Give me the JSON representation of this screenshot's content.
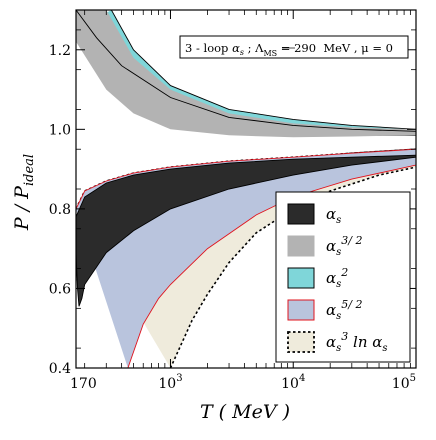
{
  "chart_data": {
    "type": "area",
    "annotation": {
      "prefix": "3 - loop ",
      "alpha": "α",
      "alpha_sub": "s",
      "mid": " ; Λ",
      "lambda_sub": "MS",
      "suffix": " = 290  MeV , μ = 0"
    },
    "xlabel": "T ( MeV )",
    "ylabel": {
      "main": "P / P",
      "sub": "ideal"
    },
    "x_scale": "log",
    "xlim": [
      170,
      100000
    ],
    "ylim": [
      0.4,
      1.3
    ],
    "x_ticks": [
      {
        "value": 170,
        "label": "170"
      },
      {
        "value": 1000,
        "base": "10",
        "exp": "3"
      },
      {
        "value": 10000,
        "base": "10",
        "exp": "4"
      },
      {
        "value": 100000,
        "base": "10",
        "exp": "5"
      }
    ],
    "y_ticks": [
      {
        "value": 0.4,
        "label": "0.4"
      },
      {
        "value": 0.6,
        "label": "0.6"
      },
      {
        "value": 0.8,
        "label": "0.8"
      },
      {
        "value": 1.0,
        "label": "1.0"
      },
      {
        "value": 1.2,
        "label": "1.2"
      }
    ],
    "grid": false,
    "legend_position": "lower-right",
    "series": [
      {
        "name": "α_s^3 ln α_s",
        "legend": {
          "base": "α",
          "sub": "s",
          "sup": "3",
          "tail": " ln α",
          "tail_sub": "s"
        },
        "fill": "#efebdc",
        "stroke": "#000000",
        "dashed": true,
        "upper": [
          [
            170,
            0.8
          ],
          [
            200,
            0.845
          ],
          [
            300,
            0.87
          ],
          [
            500,
            0.89
          ],
          [
            1000,
            0.905
          ],
          [
            3000,
            0.92
          ],
          [
            10000,
            0.93
          ],
          [
            30000,
            0.94
          ],
          [
            100000,
            0.95
          ]
        ],
        "lower": [
          [
            1000,
            0.4
          ],
          [
            1500,
            0.52
          ],
          [
            2000,
            0.585
          ],
          [
            3000,
            0.665
          ],
          [
            5000,
            0.74
          ],
          [
            10000,
            0.8
          ],
          [
            20000,
            0.845
          ],
          [
            50000,
            0.885
          ],
          [
            100000,
            0.905
          ]
        ],
        "inner_line": [
          [
            175,
            0.62
          ],
          [
            200,
            0.7
          ],
          [
            300,
            0.775
          ],
          [
            500,
            0.83
          ],
          [
            1000,
            0.87
          ],
          [
            3000,
            0.905
          ],
          [
            10000,
            0.925
          ],
          [
            30000,
            0.94
          ],
          [
            100000,
            0.95
          ]
        ]
      },
      {
        "name": "α_s^5/2",
        "legend": {
          "base": "α",
          "sub": "s",
          "sup": "5/ 2"
        },
        "fill": "#b9c4dd",
        "stroke": "#e0141e",
        "upper": [
          [
            170,
            0.8
          ],
          [
            200,
            0.845
          ],
          [
            300,
            0.87
          ],
          [
            500,
            0.89
          ],
          [
            1000,
            0.905
          ],
          [
            3000,
            0.92
          ],
          [
            10000,
            0.93
          ],
          [
            30000,
            0.94
          ],
          [
            100000,
            0.95
          ]
        ],
        "lower": [
          [
            450,
            0.4
          ],
          [
            600,
            0.51
          ],
          [
            800,
            0.575
          ],
          [
            1000,
            0.61
          ],
          [
            2000,
            0.7
          ],
          [
            5000,
            0.785
          ],
          [
            10000,
            0.83
          ],
          [
            30000,
            0.875
          ],
          [
            100000,
            0.91
          ]
        ]
      },
      {
        "name": "α_s^2",
        "legend": {
          "base": "α",
          "sub": "s",
          "sup": "2"
        },
        "fill": "#7fd6d9",
        "stroke": "#000000",
        "upper": [
          [
            330,
            1.3
          ],
          [
            500,
            1.2
          ],
          [
            1000,
            1.11
          ],
          [
            3000,
            1.05
          ],
          [
            10000,
            1.025
          ],
          [
            30000,
            1.01
          ],
          [
            100000,
            1.0
          ]
        ],
        "lower": [
          [
            170,
            1.25
          ],
          [
            300,
            1.13
          ],
          [
            500,
            1.07
          ],
          [
            1000,
            1.02
          ],
          [
            3000,
            1.0
          ],
          [
            10000,
            0.99
          ],
          [
            30000,
            0.985
          ],
          [
            100000,
            0.985
          ]
        ]
      },
      {
        "name": "α_s^3/2",
        "legend": {
          "base": "α",
          "sub": "s",
          "sup": "3/ 2"
        },
        "fill": "#b3b3b3",
        "stroke": "none",
        "upper": [
          [
            170,
            1.3
          ],
          [
            300,
            1.3
          ],
          [
            500,
            1.18
          ],
          [
            1000,
            1.1
          ],
          [
            3000,
            1.04
          ],
          [
            10000,
            1.015
          ],
          [
            30000,
            1.005
          ],
          [
            100000,
            1.0
          ]
        ],
        "lower": [
          [
            170,
            1.22
          ],
          [
            300,
            1.1
          ],
          [
            500,
            1.04
          ],
          [
            1000,
            1.0
          ],
          [
            3000,
            0.985
          ],
          [
            10000,
            0.98
          ],
          [
            30000,
            0.982
          ],
          [
            100000,
            0.985
          ]
        ]
      },
      {
        "name": "α_s",
        "legend": {
          "base": "α",
          "sub": "s"
        },
        "fill": "#2b2b2b",
        "stroke": "#000000",
        "upper": [
          [
            170,
            0.78
          ],
          [
            200,
            0.83
          ],
          [
            300,
            0.865
          ],
          [
            500,
            0.885
          ],
          [
            1000,
            0.9
          ],
          [
            3000,
            0.915
          ],
          [
            10000,
            0.925
          ],
          [
            30000,
            0.93
          ],
          [
            100000,
            0.935
          ]
        ],
        "lower": [
          [
            170,
            0.69
          ],
          [
            175,
            0.6
          ],
          [
            180,
            0.555
          ],
          [
            190,
            0.575
          ],
          [
            200,
            0.61
          ],
          [
            300,
            0.69
          ],
          [
            500,
            0.745
          ],
          [
            1000,
            0.8
          ],
          [
            3000,
            0.85
          ],
          [
            10000,
            0.885
          ],
          [
            30000,
            0.91
          ],
          [
            100000,
            0.93
          ]
        ]
      }
    ],
    "curves": [
      {
        "name": "α_s^2 edge line",
        "stroke": "#000000",
        "points": [
          [
            170,
            1.3
          ],
          [
            250,
            1.23
          ],
          [
            400,
            1.16
          ],
          [
            1000,
            1.08
          ],
          [
            3000,
            1.03
          ],
          [
            10000,
            1.01
          ],
          [
            30000,
            1.0
          ],
          [
            100000,
            0.995
          ]
        ]
      }
    ]
  }
}
